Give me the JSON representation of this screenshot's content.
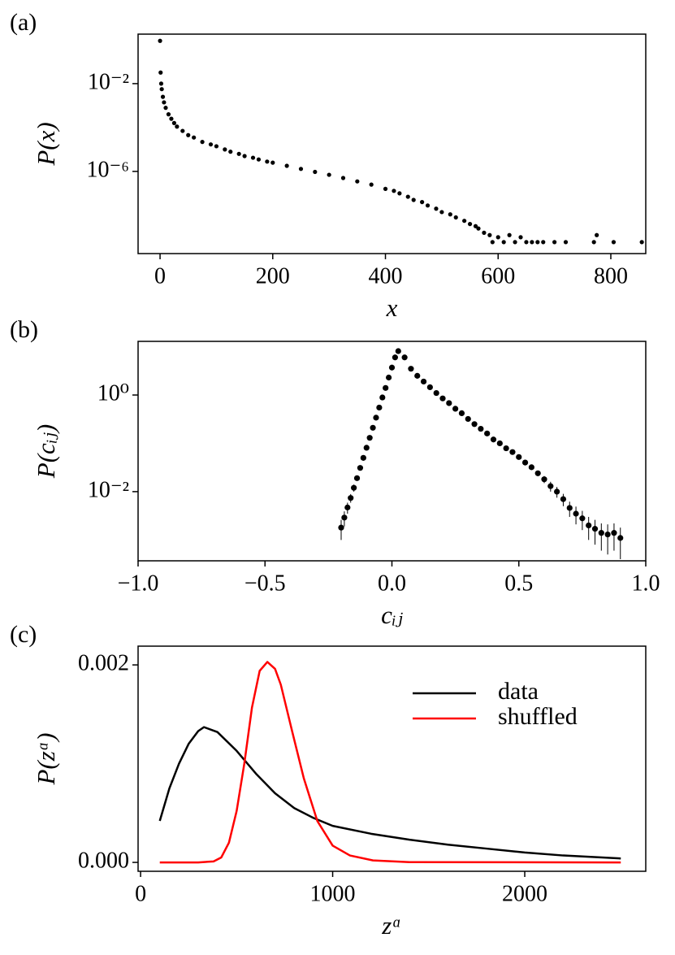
{
  "chart_data": [
    {
      "type": "scatter",
      "panel_label": "(a)",
      "xlabel": "x",
      "ylabel": "P(x)",
      "color": "#000000",
      "yscale": "log",
      "xlim": [
        -39,
        862
      ],
      "xticks": [
        0,
        200,
        400,
        600,
        800
      ],
      "ylim": [
        1.8e-10,
        1.8
      ],
      "yticks": [
        {
          "value": 0.01,
          "label": "10⁻²"
        },
        {
          "value": 1e-06,
          "label": "10⁻⁶"
        }
      ],
      "x": [
        0,
        1,
        2,
        3,
        5,
        7,
        10,
        15,
        20,
        25,
        30,
        40,
        50,
        60,
        75,
        90,
        100,
        115,
        125,
        140,
        150,
        165,
        175,
        190,
        200,
        225,
        250,
        275,
        300,
        325,
        350,
        375,
        400,
        415,
        425,
        440,
        450,
        465,
        475,
        490,
        500,
        515,
        525,
        540,
        550,
        560,
        565,
        575,
        585,
        600,
        620,
        640,
        590,
        610,
        630,
        650,
        660,
        670,
        680,
        700,
        720,
        770,
        775,
        805,
        855
      ],
      "values": [
        0.89,
        0.032,
        0.01,
        0.0056,
        0.0025,
        0.0014,
        0.00079,
        0.0004,
        0.00025,
        0.00016,
        0.00011,
        7e-05,
        4.5e-05,
        3.5e-05,
        2.2e-05,
        1.7e-05,
        1.4e-05,
        1e-05,
        7.9e-06,
        6.3e-06,
        5e-06,
        4.2e-06,
        3.5e-06,
        2.8e-06,
        2.5e-06,
        1.8e-06,
        1.3e-06,
        9.5e-07,
        7e-07,
        5e-07,
        3.5e-07,
        2.5e-07,
        1.6e-07,
        1.3e-07,
        1e-07,
        7e-08,
        5e-08,
        4e-08,
        2.8e-08,
        2e-08,
        1.4e-08,
        1.1e-08,
        8e-09,
        5.6e-09,
        4e-09,
        3.2e-09,
        2.5e-09,
        1.6e-09,
        1.25e-09,
        1e-09,
        1.25e-09,
        1e-09,
        6e-10,
        6e-10,
        6e-10,
        6e-10,
        6e-10,
        6e-10,
        6e-10,
        6e-10,
        6e-10,
        6e-10,
        1.25e-09,
        6e-10,
        6e-10
      ]
    },
    {
      "type": "errorbar",
      "panel_label": "(b)",
      "xlabel": "cᵢⱼ",
      "ylabel": "P(cᵢⱼ)",
      "color": "#000000",
      "yscale": "log",
      "xlim": [
        -1,
        1
      ],
      "xticks": [
        {
          "value": -1,
          "label": "−1.0"
        },
        {
          "value": -0.5,
          "label": "−0.5"
        },
        {
          "value": 0,
          "label": "0.0"
        },
        {
          "value": 0.5,
          "label": "0.5"
        },
        {
          "value": 1,
          "label": "1.0"
        }
      ],
      "ylim": [
        0.00037,
        12.9
      ],
      "yticks": [
        {
          "value": 1,
          "label": "10⁰"
        },
        {
          "value": 0.01,
          "label": "10⁻²"
        }
      ],
      "x": [
        -0.2,
        -0.1875,
        -0.175,
        -0.1625,
        -0.15,
        -0.1375,
        -0.125,
        -0.1125,
        -0.1,
        -0.0875,
        -0.075,
        -0.0625,
        -0.05,
        -0.0375,
        -0.025,
        -0.0125,
        0,
        0.0125,
        0.025,
        0.05,
        0.075,
        0.1,
        0.125,
        0.15,
        0.175,
        0.2,
        0.225,
        0.25,
        0.275,
        0.3,
        0.325,
        0.35,
        0.375,
        0.4,
        0.425,
        0.45,
        0.475,
        0.5,
        0.525,
        0.55,
        0.575,
        0.6,
        0.625,
        0.65,
        0.675,
        0.7,
        0.725,
        0.75,
        0.775,
        0.8,
        0.825,
        0.85,
        0.875,
        0.9
      ],
      "values": [
        0.0018,
        0.0029,
        0.0047,
        0.0074,
        0.012,
        0.019,
        0.031,
        0.05,
        0.081,
        0.13,
        0.21,
        0.34,
        0.55,
        0.89,
        1.4,
        2.3,
        3.7,
        6.0,
        8.1,
        6.0,
        3.5,
        2.5,
        1.9,
        1.45,
        1.1,
        0.85,
        0.68,
        0.52,
        0.42,
        0.32,
        0.25,
        0.2,
        0.16,
        0.12,
        0.1,
        0.079,
        0.066,
        0.052,
        0.04,
        0.032,
        0.024,
        0.018,
        0.013,
        0.01,
        0.007,
        0.0046,
        0.0035,
        0.0028,
        0.002,
        0.0017,
        0.0014,
        0.0013,
        0.0014,
        0.0011
      ],
      "errors": [
        0.0008,
        0.001,
        0.0012,
        0.0015,
        0.002,
        0.002,
        0.002,
        0.002,
        0.003,
        0.004,
        0.005,
        0.008,
        0.01,
        0.015,
        0.02,
        0.03,
        0.05,
        0.08,
        0.1,
        0.08,
        0.05,
        0.04,
        0.03,
        0.025,
        0.02,
        0.017,
        0.014,
        0.012,
        0.01,
        0.009,
        0.008,
        0.007,
        0.006,
        0.005,
        0.005,
        0.004,
        0.004,
        0.004,
        0.003,
        0.003,
        0.003,
        0.003,
        0.003,
        0.0025,
        0.002,
        0.0016,
        0.0014,
        0.0012,
        0.001,
        0.0009,
        0.0008,
        0.0008,
        0.0008,
        0.0007
      ]
    },
    {
      "type": "line",
      "panel_label": "(c)",
      "xlabel": "zᵅ",
      "ylabel": "P(zᵅ)",
      "legend": "upper right",
      "xlim": [
        -13,
        2630
      ],
      "xticks": [
        0,
        1000,
        2000
      ],
      "ylim": [
        -9e-05,
        0.00219
      ],
      "yticks": [
        {
          "value": 0,
          "label": "0.000"
        },
        {
          "value": 0.002,
          "label": "0.002"
        }
      ],
      "series": [
        {
          "name": "data",
          "color": "#000000",
          "x": [
            100,
            150,
            200,
            250,
            300,
            330,
            400,
            500,
            600,
            700,
            800,
            900,
            1000,
            1200,
            1400,
            1600,
            1800,
            2000,
            2200,
            2500
          ],
          "values": [
            0.00042,
            0.00075,
            0.001,
            0.0012,
            0.00133,
            0.00137,
            0.00132,
            0.00113,
            0.0009,
            0.0007,
            0.00055,
            0.00045,
            0.00037,
            0.00029,
            0.00023,
            0.00018,
            0.00014,
            0.0001,
            7e-05,
            4e-05
          ]
        },
        {
          "name": "shuffled",
          "color": "#ff0000",
          "x": [
            100,
            300,
            380,
            420,
            460,
            500,
            540,
            580,
            620,
            660,
            700,
            730,
            790,
            850,
            920,
            1000,
            1090,
            1210,
            1400,
            2500
          ],
          "values": [
            0,
            0,
            1e-05,
            5e-05,
            0.0002,
            0.00052,
            0.001,
            0.00157,
            0.00194,
            0.00203,
            0.00196,
            0.0018,
            0.00132,
            0.00085,
            0.00042,
            0.00017,
            7e-05,
            2e-05,
            3e-06,
            0
          ]
        }
      ]
    }
  ]
}
